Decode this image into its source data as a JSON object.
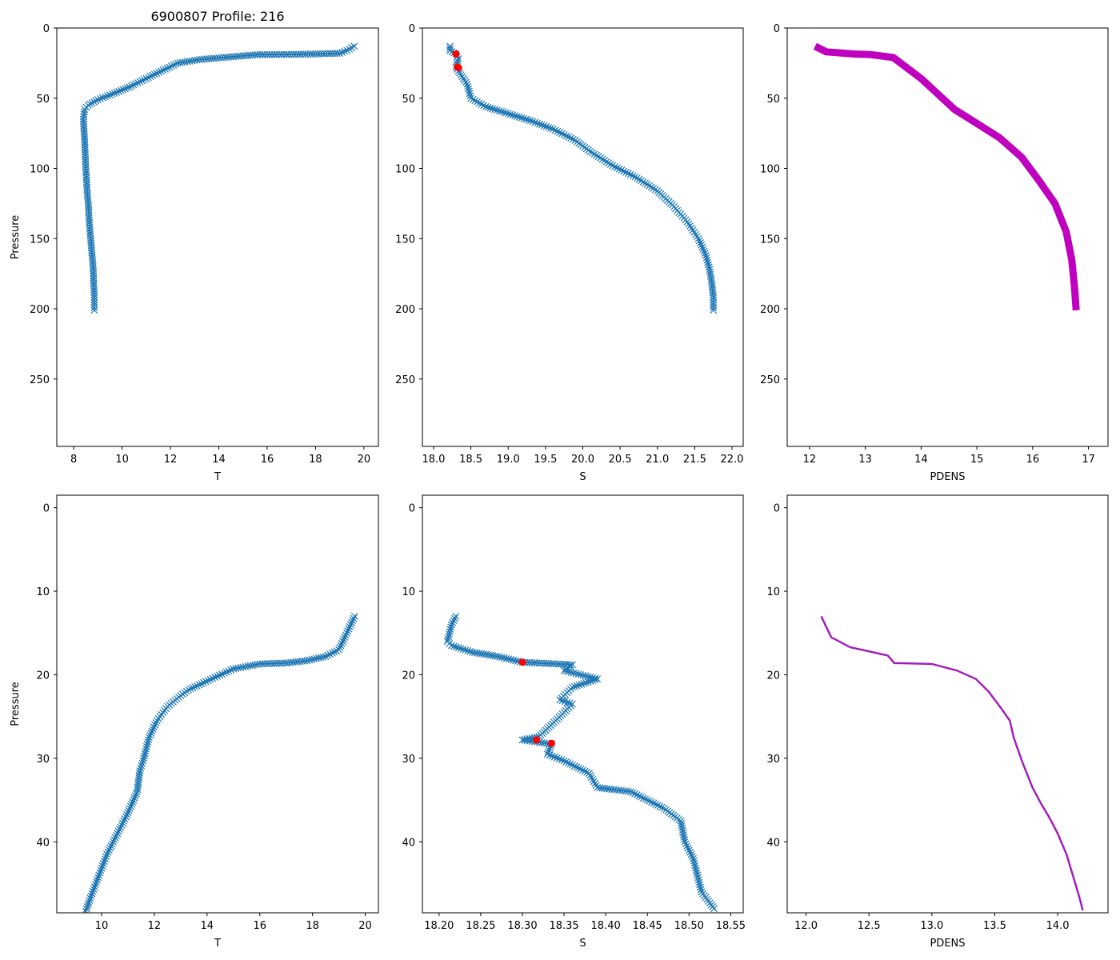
{
  "figure_title": "6900807 Profile: 216",
  "colors": {
    "series": "#1f77b4",
    "flag": "#ff0000",
    "pdens": "#bf00bf",
    "pdens_zoom_inner": "#1f77b4"
  },
  "chart_data": [
    {
      "id": "T_full",
      "type": "line",
      "marker": "x",
      "xlabel": "T",
      "ylabel": "Pressure",
      "xlim": [
        7.3,
        20.6
      ],
      "ylim": [
        298,
        0
      ],
      "xticks": [
        8,
        10,
        12,
        14,
        16,
        18,
        20
      ],
      "yticks": [
        0,
        50,
        100,
        150,
        200,
        250
      ],
      "series": [
        {
          "name": "T",
          "x": [
            19.6,
            19.3,
            19.0,
            18.0,
            17.0,
            15.6,
            14.2,
            13.2,
            12.3,
            11.7,
            11.0,
            10.3,
            9.6,
            9.0,
            8.6,
            8.45,
            8.4,
            8.45,
            8.5,
            8.55,
            8.6,
            8.65,
            8.7,
            8.75,
            8.8,
            8.82,
            8.85,
            8.85
          ],
          "y": [
            13,
            16,
            18,
            18.5,
            18.8,
            19,
            21,
            22.5,
            25,
            30,
            36,
            42,
            47,
            51,
            55,
            58,
            65,
            80,
            100,
            115,
            125,
            140,
            150,
            160,
            170,
            180,
            190,
            201
          ]
        }
      ],
      "flagged": []
    },
    {
      "id": "S_full",
      "type": "line",
      "marker": "x",
      "xlabel": "S",
      "ylabel": "",
      "xlim": [
        17.85,
        22.15
      ],
      "ylim": [
        298,
        0
      ],
      "xticks": [
        18.0,
        18.5,
        19.0,
        19.5,
        20.0,
        20.5,
        21.0,
        21.5,
        22.0
      ],
      "yticks": [
        0,
        50,
        100,
        150,
        200,
        250
      ],
      "series": [
        {
          "name": "S",
          "x": [
            18.22,
            18.22,
            18.3,
            18.33,
            18.3,
            18.35,
            18.45,
            18.5,
            18.7,
            19.0,
            19.3,
            19.6,
            19.9,
            20.1,
            20.4,
            20.7,
            21.0,
            21.2,
            21.4,
            21.55,
            21.65,
            21.7,
            21.73,
            21.75,
            21.75
          ],
          "y": [
            13,
            16,
            18.5,
            22,
            28,
            32,
            40,
            50,
            56,
            61,
            66,
            72,
            80,
            88,
            98,
            106,
            116,
            126,
            138,
            150,
            162,
            172,
            182,
            192,
            201
          ]
        }
      ],
      "flagged": [
        {
          "x": 18.3,
          "y": 18.5
        },
        {
          "x": 18.32,
          "y": 27.8
        },
        {
          "x": 18.335,
          "y": 28.3
        }
      ]
    },
    {
      "id": "PDENS_full",
      "type": "line",
      "marker": "^",
      "xlabel": "PDENS",
      "ylabel": "",
      "xlim": [
        11.6,
        17.35
      ],
      "ylim": [
        298,
        0
      ],
      "xticks": [
        12,
        13,
        14,
        15,
        16,
        17
      ],
      "yticks": [
        0,
        50,
        100,
        150,
        200,
        250
      ],
      "series": [
        {
          "name": "PDENS",
          "x": [
            12.1,
            12.3,
            12.8,
            13.1,
            13.5,
            13.7,
            14.0,
            14.3,
            14.6,
            15.0,
            15.4,
            15.8,
            16.1,
            16.4,
            16.6,
            16.7,
            16.75,
            16.78
          ],
          "y": [
            13,
            17,
            18.5,
            19,
            21,
            27,
            36,
            47,
            58,
            68,
            78,
            92,
            108,
            125,
            145,
            165,
            185,
            201
          ]
        }
      ],
      "flagged": []
    },
    {
      "id": "T_zoom",
      "type": "line",
      "marker": "x",
      "xlabel": "T",
      "ylabel": "Pressure",
      "xlim": [
        8.3,
        20.5
      ],
      "ylim": [
        48.5,
        -1.5
      ],
      "xticks": [
        10,
        12,
        14,
        16,
        18,
        20
      ],
      "yticks": [
        0,
        10,
        20,
        30,
        40
      ],
      "series": [
        {
          "name": "T",
          "x": [
            19.6,
            19.3,
            19.0,
            18.5,
            17.8,
            17.0,
            16.0,
            15.0,
            14.3,
            13.7,
            13.3,
            13.0,
            12.5,
            12.1,
            11.8,
            11.6,
            11.45,
            11.35,
            11.0,
            10.6,
            10.2,
            9.9,
            9.6,
            9.4
          ],
          "y": [
            13,
            15,
            17,
            17.8,
            18.3,
            18.6,
            18.7,
            19.3,
            20.3,
            21.2,
            21.8,
            22.5,
            23.8,
            25.5,
            27.5,
            30,
            31.5,
            34,
            36.5,
            39,
            41.5,
            44,
            46.5,
            48.3
          ]
        }
      ],
      "flagged": []
    },
    {
      "id": "S_zoom",
      "type": "line",
      "marker": "x",
      "xlabel": "S",
      "ylabel": "",
      "xlim": [
        18.18,
        18.565
      ],
      "ylim": [
        48.5,
        -1.5
      ],
      "xticks": [
        18.2,
        18.25,
        18.3,
        18.35,
        18.4,
        18.45,
        18.5,
        18.55
      ],
      "yticks": [
        0,
        10,
        20,
        30,
        40
      ],
      "series": [
        {
          "name": "S",
          "x": [
            18.22,
            18.215,
            18.21,
            18.215,
            18.24,
            18.27,
            18.3,
            18.36,
            18.35,
            18.39,
            18.36,
            18.345,
            18.36,
            18.34,
            18.32,
            18.3,
            18.335,
            18.33,
            18.35,
            18.38,
            18.39,
            18.43,
            18.47,
            18.49,
            18.495,
            18.505,
            18.51,
            18.515,
            18.53
          ],
          "y": [
            13,
            14,
            16,
            16.5,
            17.3,
            17.8,
            18.5,
            18.8,
            19.5,
            20.5,
            21.5,
            23,
            23.5,
            25.5,
            27.4,
            27.8,
            28.3,
            29.5,
            30.3,
            31.8,
            33.5,
            34,
            36,
            37.5,
            40,
            42,
            44,
            46,
            48
          ]
        }
      ],
      "flagged": [
        {
          "x": 18.3,
          "y": 18.5
        },
        {
          "x": 18.317,
          "y": 27.8
        },
        {
          "x": 18.335,
          "y": 28.2
        }
      ]
    },
    {
      "id": "PDENS_zoom",
      "type": "line",
      "marker": "none",
      "xlabel": "PDENS",
      "ylabel": "",
      "xlim": [
        11.85,
        14.4
      ],
      "ylim": [
        48.5,
        -1.5
      ],
      "xticks": [
        12.0,
        12.5,
        13.0,
        13.5,
        14.0
      ],
      "yticks": [
        0,
        10,
        20,
        30,
        40
      ],
      "series": [
        {
          "name": "PDENS",
          "x": [
            12.12,
            12.2,
            12.35,
            12.5,
            12.65,
            12.7,
            13.0,
            13.2,
            13.35,
            13.45,
            13.55,
            13.62,
            13.65,
            13.68,
            13.72,
            13.8,
            13.87,
            13.93,
            14.0,
            14.07,
            14.12,
            14.17,
            14.2
          ],
          "y": [
            13,
            15.5,
            16.7,
            17.2,
            17.7,
            18.6,
            18.7,
            19.5,
            20.5,
            22,
            24,
            25.5,
            27.5,
            28.8,
            30.5,
            33.5,
            35.5,
            37,
            39,
            41.5,
            44,
            46.5,
            48.2
          ]
        }
      ],
      "flagged": []
    }
  ]
}
